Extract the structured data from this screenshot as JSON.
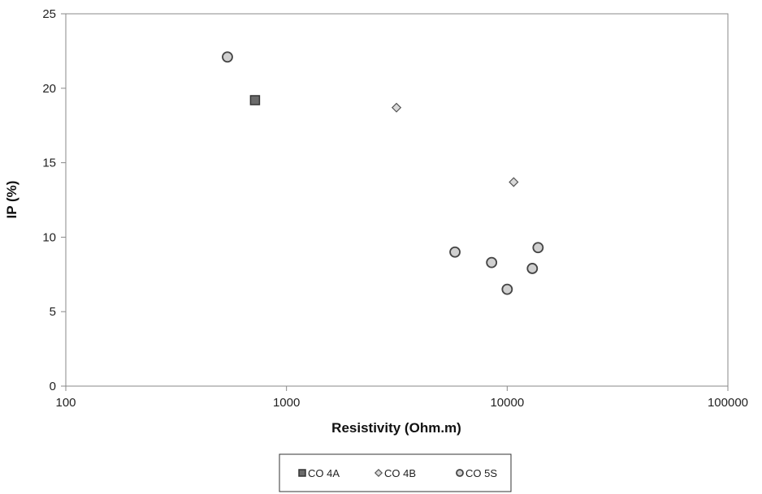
{
  "chart_data": {
    "type": "scatter",
    "title": "",
    "xlabel": "Resistivity (Ohm.m)",
    "ylabel": "IP (%)",
    "x_scale": "log",
    "xlim": [
      100,
      100000
    ],
    "ylim": [
      0,
      25
    ],
    "x_ticks": [
      "100",
      "1000",
      "10000",
      "100000"
    ],
    "y_ticks": [
      "0",
      "5",
      "10",
      "15",
      "20",
      "25"
    ],
    "grid": false,
    "legend_position": "bottom",
    "series": [
      {
        "name": "CO 4A",
        "marker": "square",
        "color": "#6b6b6b",
        "points": [
          {
            "x": 720,
            "y": 19.2
          }
        ]
      },
      {
        "name": "CO 4B",
        "marker": "diamond",
        "color": "#d9d9d9",
        "points": [
          {
            "x": 3150,
            "y": 18.7
          },
          {
            "x": 10700,
            "y": 13.7
          }
        ]
      },
      {
        "name": "CO 5S",
        "marker": "circle",
        "color": "#d0d0d0",
        "points": [
          {
            "x": 540,
            "y": 22.1
          },
          {
            "x": 5800,
            "y": 9.0
          },
          {
            "x": 8500,
            "y": 8.3
          },
          {
            "x": 10000,
            "y": 6.5
          },
          {
            "x": 13000,
            "y": 7.9
          },
          {
            "x": 13800,
            "y": 9.3
          }
        ]
      }
    ]
  }
}
